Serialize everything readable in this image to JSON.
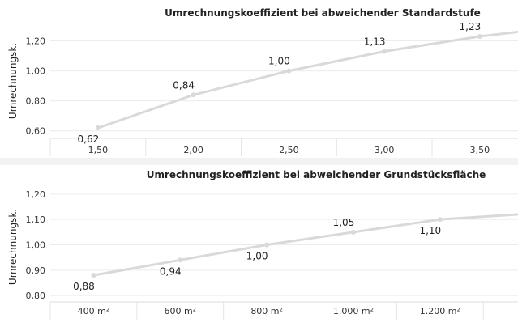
{
  "chart_data": [
    {
      "type": "line",
      "title": "Umrechnungskoeffizient bei abweichender Standardstufe",
      "ylabel": "Umrechnungsk.",
      "xlabel": "",
      "x_ticks": [
        "1,50",
        "2,00",
        "2,50",
        "3,00",
        "3,50"
      ],
      "y_ticks": [
        "0,60",
        "0,80",
        "1,00",
        "1,20"
      ],
      "ylim": [
        0.55,
        1.3
      ],
      "xlim": [
        1.25,
        3.7
      ],
      "grid": true,
      "series": [
        {
          "x": [
            1.5,
            2.0,
            2.5,
            3.0,
            3.5,
            3.7
          ],
          "y": [
            0.62,
            0.84,
            1.0,
            1.13,
            1.23,
            1.26
          ],
          "labels": [
            "0,62",
            "0,84",
            "1,00",
            "1,13",
            "1,23",
            ""
          ],
          "label_pos": [
            "below",
            "above",
            "above",
            "above",
            "above",
            "none"
          ],
          "color": "#d9d9d9"
        }
      ]
    },
    {
      "type": "line",
      "title": "Umrechnungskoeffizient bei abweichender Grundstücksfläche",
      "ylabel": "Umrechnungsk.",
      "xlabel": "",
      "x_ticks": [
        "400 m²",
        "600 m²",
        "800 m²",
        "1.000 m²",
        "1.200 m²"
      ],
      "y_ticks": [
        "0,80",
        "0,90",
        "1,00",
        "1,10",
        "1,20"
      ],
      "ylim": [
        0.775,
        1.225
      ],
      "xlim": [
        300,
        1380
      ],
      "grid": true,
      "series": [
        {
          "x": [
            400,
            600,
            800,
            1000,
            1200,
            1380
          ],
          "y": [
            0.88,
            0.94,
            1.0,
            1.05,
            1.1,
            1.12
          ],
          "labels": [
            "0,88",
            "0,94",
            "1,00",
            "1,05",
            "1,10",
            ""
          ],
          "label_pos": [
            "below",
            "below",
            "below",
            "above",
            "below",
            "none"
          ],
          "color": "#d9d9d9"
        }
      ]
    }
  ]
}
